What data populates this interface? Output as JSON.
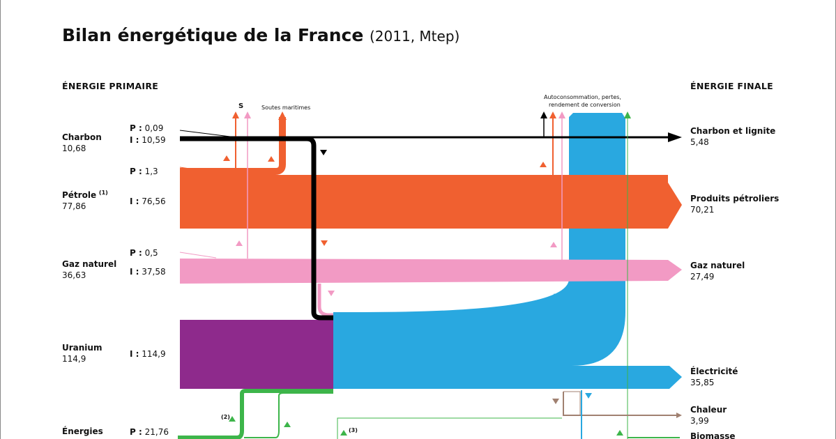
{
  "title": "Bilan énergétique de la France",
  "subtitle": "(2011, Mtep)",
  "headers": {
    "primary": "ÉNERGIE PRIMAIRE",
    "final": "ÉNERGIE FINALE"
  },
  "primary": {
    "charbon": {
      "name": "Charbon",
      "value": "10,68",
      "p": "0,09",
      "i": "10,59"
    },
    "petrole": {
      "name": "Pétrole",
      "note": "(1)",
      "value": "77,86",
      "p": "1,3",
      "i": "76,56"
    },
    "gaz": {
      "name": "Gaz naturel",
      "value": "36,63",
      "p": "0,5",
      "i": "37,58"
    },
    "uranium": {
      "name": "Uranium",
      "value": "114,9",
      "i": "114,9"
    },
    "enr": {
      "name": "Énergies",
      "p": "21,76"
    }
  },
  "prefix": {
    "p": "P :",
    "i": "I :"
  },
  "final": {
    "charbon": {
      "name": "Charbon et lignite",
      "value": "5,48"
    },
    "petrole": {
      "name": "Produits pétroliers",
      "value": "70,21"
    },
    "gaz": {
      "name": "Gaz naturel",
      "value": "27,49"
    },
    "elec": {
      "name": "Électricité",
      "value": "35,85"
    },
    "chaleur": {
      "name": "Chaleur",
      "value": "3,99"
    },
    "biomasse": {
      "name": "Biomasse"
    }
  },
  "annotations": {
    "s": "S",
    "soutes": "Soutes maritimes",
    "auto_line1": "Autoconsommation, pertes,",
    "auto_line2": "rendement de conversion",
    "note2": "(2)",
    "note3": "(3)"
  },
  "colors": {
    "charbon": "#000000",
    "petrole": "#f06030",
    "gaz": "#f29ac4",
    "uranium": "#8e2a8c",
    "electricite": "#29a8e0",
    "renouvelables": "#3db54a",
    "chaleur": "#a08070"
  }
}
